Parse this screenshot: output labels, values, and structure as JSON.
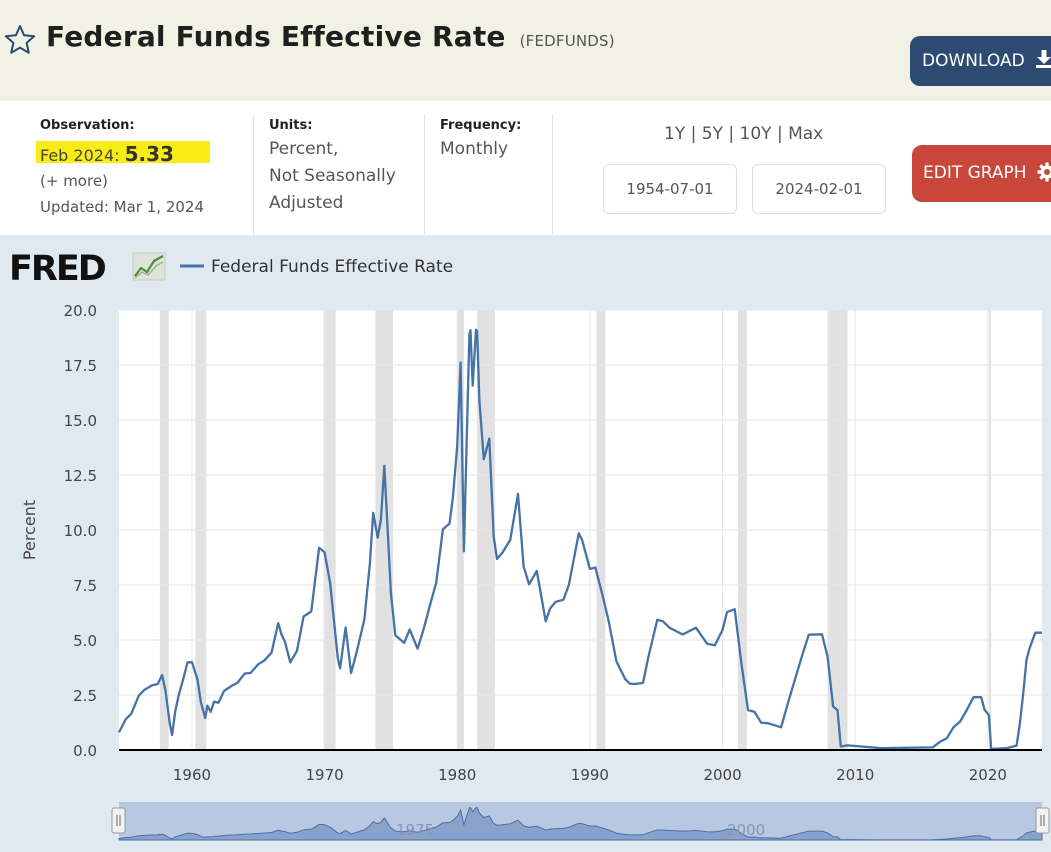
{
  "header": {
    "title": "Federal Funds Effective Rate",
    "code": "(FEDFUNDS)",
    "download_label": "DOWNLOAD",
    "star_icon": "star-outline-icon",
    "download_icon": "download-icon"
  },
  "info": {
    "observation_label": "Observation:",
    "observation_date": "Feb 2024:",
    "observation_value": "5.33",
    "more_label": "(+ more)",
    "updated": "Updated: Mar 1, 2024",
    "units_label": "Units:",
    "units_line1": "Percent,",
    "units_line2": "Not Seasonally",
    "units_line3": "Adjusted",
    "frequency_label": "Frequency:",
    "frequency_value": "Monthly",
    "range_1y": "1Y",
    "range_5y": "5Y",
    "range_10y": "10Y",
    "range_max": "Max",
    "range_sep": "|",
    "start_date": "1954-07-01",
    "end_date": "2024-02-01",
    "edit_label": "EDIT GRAPH",
    "edit_icon": "gear-icon"
  },
  "colors": {
    "line": "#4572a7",
    "recession": "#e1e1e1",
    "header_bg": "#f1f2e4",
    "download_bg": "#2c4a72",
    "edit_bg": "#c9473a",
    "highlight": "#f8ec13",
    "chart_bg": "#e1e9f0"
  },
  "chart_data": {
    "type": "line",
    "logo": "FRED",
    "ylabel": "Percent",
    "legend": "Federal Funds Effective Rate",
    "legend_position": "top-left",
    "ylim": [
      0,
      20
    ],
    "xlim": [
      "1954-07-01",
      "2024-02-01"
    ],
    "grid": true,
    "y_ticks": [
      "0.0",
      "2.5",
      "5.0",
      "7.5",
      "10.0",
      "12.5",
      "15.0",
      "17.5",
      "20.0"
    ],
    "x_ticks": [
      "1960",
      "1970",
      "1980",
      "1990",
      "2000",
      "2010",
      "2020"
    ],
    "navigator_labels": [
      "1975",
      "2000"
    ],
    "recessions": [
      [
        "1957-08",
        "1958-04"
      ],
      [
        "1960-04",
        "1961-02"
      ],
      [
        "1969-12",
        "1970-11"
      ],
      [
        "1973-11",
        "1975-03"
      ],
      [
        "1980-01",
        "1980-07"
      ],
      [
        "1981-07",
        "1982-11"
      ],
      [
        "1990-07",
        "1991-03"
      ],
      [
        "2001-03",
        "2001-11"
      ],
      [
        "2007-12",
        "2009-06"
      ],
      [
        "2020-02",
        "2020-04"
      ]
    ],
    "series": [
      {
        "name": "Federal Funds Effective Rate",
        "x": [
          "1954-07",
          "1955-01",
          "1955-06",
          "1956-01",
          "1956-06",
          "1957-01",
          "1957-06",
          "1957-10",
          "1958-01",
          "1958-05",
          "1958-07",
          "1958-10",
          "1959-01",
          "1959-06",
          "1959-09",
          "1960-01",
          "1960-06",
          "1960-09",
          "1961-01",
          "1961-03",
          "1961-06",
          "1961-09",
          "1962-01",
          "1962-06",
          "1963-01",
          "1963-06",
          "1964-01",
          "1964-06",
          "1965-01",
          "1965-06",
          "1966-01",
          "1966-07",
          "1966-10",
          "1967-01",
          "1967-06",
          "1967-12",
          "1968-06",
          "1969-01",
          "1969-08",
          "1970-01",
          "1970-06",
          "1971-01",
          "1971-03",
          "1971-08",
          "1972-01",
          "1972-06",
          "1973-01",
          "1973-06",
          "1973-09",
          "1974-01",
          "1974-04",
          "1974-07",
          "1974-10",
          "1975-01",
          "1975-05",
          "1976-01",
          "1976-06",
          "1977-01",
          "1977-06",
          "1978-01",
          "1978-06",
          "1978-12",
          "1979-06",
          "1979-09",
          "1980-01",
          "1980-04",
          "1980-07",
          "1980-12",
          "1981-01",
          "1981-03",
          "1981-06",
          "1981-07",
          "1981-09",
          "1982-01",
          "1982-06",
          "1982-10",
          "1983-01",
          "1983-06",
          "1984-01",
          "1984-08",
          "1985-01",
          "1985-06",
          "1986-01",
          "1986-09",
          "1987-01",
          "1987-06",
          "1988-01",
          "1988-06",
          "1989-03",
          "1989-06",
          "1990-01",
          "1990-06",
          "1991-01",
          "1991-06",
          "1992-01",
          "1992-09",
          "1993-01",
          "1993-06",
          "1994-01",
          "1994-06",
          "1995-02",
          "1995-07",
          "1996-01",
          "1997-01",
          "1998-01",
          "1998-11",
          "1999-06",
          "2000-01",
          "2000-05",
          "2000-12",
          "2001-06",
          "2001-12",
          "2002-06",
          "2002-12",
          "2003-06",
          "2004-06",
          "2005-01",
          "2006-01",
          "2006-07",
          "2007-07",
          "2007-12",
          "2008-05",
          "2008-09",
          "2008-12",
          "2009-06",
          "2012-01",
          "2015-11",
          "2016-06",
          "2016-12",
          "2017-06",
          "2017-12",
          "2018-06",
          "2018-12",
          "2019-07",
          "2019-10",
          "2020-02",
          "2020-04",
          "2021-06",
          "2022-03",
          "2022-06",
          "2022-09",
          "2022-12",
          "2023-03",
          "2023-06",
          "2023-08",
          "2024-02"
        ],
        "values": [
          0.8,
          1.39,
          1.64,
          2.48,
          2.73,
          2.94,
          3.0,
          3.4,
          2.72,
          1.2,
          0.68,
          1.8,
          2.48,
          3.39,
          3.98,
          3.99,
          3.2,
          2.19,
          1.45,
          2.02,
          1.73,
          2.2,
          2.15,
          2.68,
          2.92,
          3.05,
          3.48,
          3.5,
          3.9,
          4.05,
          4.42,
          5.77,
          5.25,
          4.94,
          3.98,
          4.51,
          6.07,
          6.3,
          9.19,
          8.98,
          7.6,
          4.14,
          3.71,
          5.57,
          3.5,
          4.46,
          5.94,
          8.49,
          10.78,
          9.65,
          10.51,
          12.92,
          10.06,
          7.13,
          5.22,
          4.87,
          5.48,
          4.61,
          5.39,
          6.7,
          7.6,
          10.03,
          10.29,
          11.43,
          13.82,
          17.61,
          9.03,
          18.9,
          19.08,
          16.57,
          19.1,
          19.04,
          15.87,
          13.22,
          14.15,
          9.71,
          8.68,
          8.98,
          9.56,
          11.64,
          8.35,
          7.53,
          8.14,
          5.85,
          6.43,
          6.73,
          6.83,
          7.51,
          9.85,
          9.53,
          8.23,
          8.29,
          6.91,
          5.86,
          4.03,
          3.22,
          3.02,
          3.0,
          3.05,
          4.25,
          5.92,
          5.85,
          5.56,
          5.25,
          5.56,
          4.83,
          4.76,
          5.45,
          6.27,
          6.4,
          3.97,
          1.82,
          1.73,
          1.24,
          1.22,
          1.03,
          2.28,
          4.29,
          5.24,
          5.26,
          4.24,
          1.98,
          1.81,
          0.16,
          0.21,
          0.08,
          0.12,
          0.38,
          0.54,
          1.04,
          1.3,
          1.82,
          2.4,
          2.4,
          1.83,
          1.58,
          0.05,
          0.08,
          0.2,
          1.21,
          2.56,
          4.1,
          4.65,
          5.08,
          5.33,
          5.33
        ]
      }
    ]
  }
}
